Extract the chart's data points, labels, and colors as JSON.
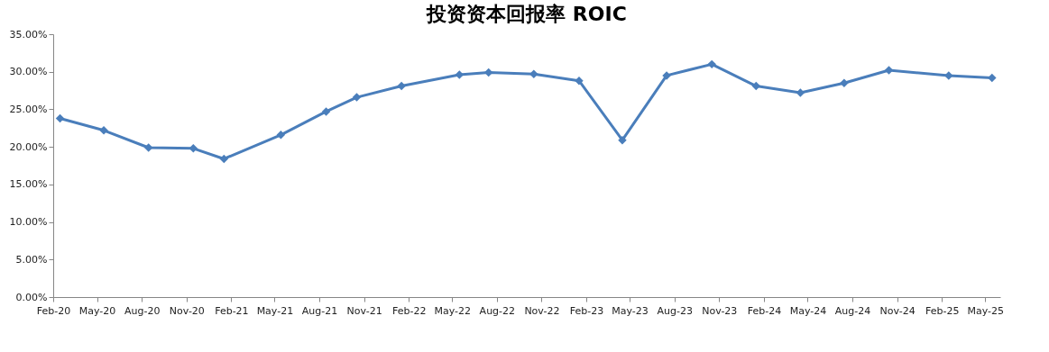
{
  "chart_data": {
    "type": "line",
    "title": "投资资本回报率 ROIC",
    "x": [
      "2020-02-15",
      "2020-05-15",
      "2020-08-15",
      "2020-11-15",
      "2021-01-17",
      "2021-05-14",
      "2021-08-15",
      "2021-10-17",
      "2022-01-17",
      "2022-05-16",
      "2022-07-15",
      "2022-10-16",
      "2023-01-17",
      "2023-04-16",
      "2023-07-16",
      "2023-10-17",
      "2024-01-16",
      "2024-04-16",
      "2024-07-15",
      "2024-10-15",
      "2025-02-15",
      "2025-05-15"
    ],
    "series": [
      {
        "color": "#4a7ebb",
        "values": [
          23.8,
          22.2,
          19.9,
          19.8,
          18.4,
          21.6,
          24.7,
          26.6,
          28.1,
          29.6,
          29.9,
          29.7,
          28.8,
          20.9,
          29.5,
          31.0,
          28.1,
          27.2,
          28.5,
          30.2,
          29.5,
          29.2
        ]
      }
    ],
    "xlim": [
      "2020-02-01",
      "2025-06-01"
    ],
    "xticks": [
      {
        "value": "2020-02-01",
        "label": "Feb-20"
      },
      {
        "value": "2020-05-01",
        "label": "May-20"
      },
      {
        "value": "2020-08-01",
        "label": "Aug-20"
      },
      {
        "value": "2020-11-01",
        "label": "Nov-20"
      },
      {
        "value": "2021-02-01",
        "label": "Feb-21"
      },
      {
        "value": "2021-05-01",
        "label": "May-21"
      },
      {
        "value": "2021-08-01",
        "label": "Aug-21"
      },
      {
        "value": "2021-11-01",
        "label": "Nov-21"
      },
      {
        "value": "2022-02-01",
        "label": "Feb-22"
      },
      {
        "value": "2022-05-01",
        "label": "May-22"
      },
      {
        "value": "2022-08-01",
        "label": "Aug-22"
      },
      {
        "value": "2022-11-01",
        "label": "Nov-22"
      },
      {
        "value": "2023-02-01",
        "label": "Feb-23"
      },
      {
        "value": "2023-05-01",
        "label": "May-23"
      },
      {
        "value": "2023-08-01",
        "label": "Aug-23"
      },
      {
        "value": "2023-11-01",
        "label": "Nov-23"
      },
      {
        "value": "2024-02-01",
        "label": "Feb-24"
      },
      {
        "value": "2024-05-01",
        "label": "May-24"
      },
      {
        "value": "2024-08-01",
        "label": "Aug-24"
      },
      {
        "value": "2024-11-01",
        "label": "Nov-24"
      },
      {
        "value": "2025-02-01",
        "label": "Feb-25"
      },
      {
        "value": "2025-05-01",
        "label": "May-25"
      }
    ],
    "ylim": [
      0,
      35
    ],
    "yticks": [
      {
        "value": 0,
        "label": "0.00%"
      },
      {
        "value": 5,
        "label": "5.00%"
      },
      {
        "value": 10,
        "label": "10.00%"
      },
      {
        "value": 15,
        "label": "15.00%"
      },
      {
        "value": 20,
        "label": "20.00%"
      },
      {
        "value": 25,
        "label": "25.00%"
      },
      {
        "value": 30,
        "label": "30.00%"
      },
      {
        "value": 35,
        "label": "35.00%"
      }
    ],
    "marker": "diamond",
    "line_style": "solid",
    "grid": false
  }
}
